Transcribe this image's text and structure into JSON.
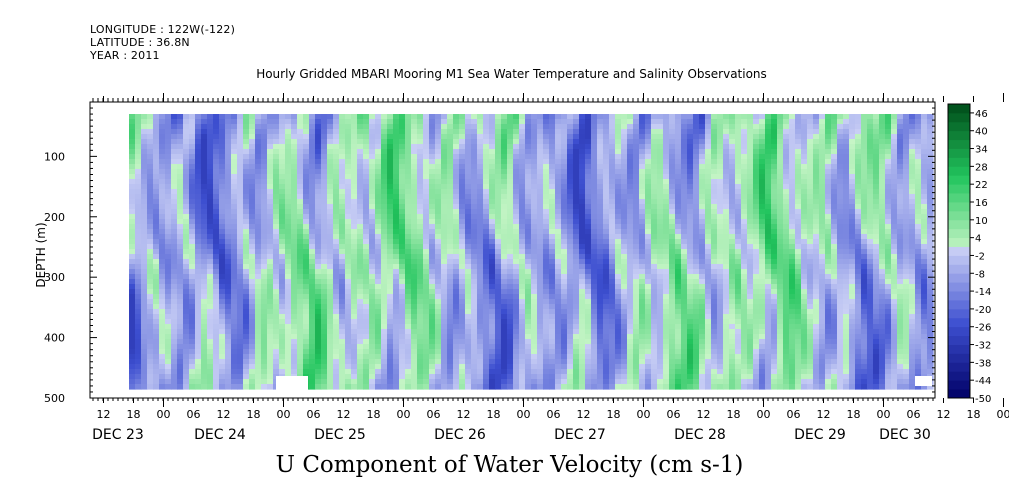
{
  "header": {
    "longitude": "LONGITUDE : 122W(-122)",
    "latitude": "LATITUDE : 36.8N",
    "year": "YEAR : 2011",
    "title": "Hourly Gridded MBARI Mooring M1 Sea Water Temperature and Salinity Observations"
  },
  "chart_data": {
    "type": "heatmap",
    "title": "Hourly Gridded MBARI Mooring M1 Sea Water Temperature and Salinity Observations",
    "xlabel": "U Component of Water Velocity (cm s-1)",
    "ylabel": "DEPTH (m)",
    "y_ticks": [
      100,
      200,
      300,
      400,
      500
    ],
    "ylim": [
      500,
      10
    ],
    "y_inverted": true,
    "x_hour_ticks": [
      "12",
      "18",
      "00",
      "06",
      "12",
      "18",
      "00",
      "06",
      "12",
      "18",
      "00",
      "06",
      "12",
      "18",
      "00",
      "06",
      "12",
      "18",
      "00",
      "06",
      "12",
      "18",
      "00",
      "06",
      "12",
      "18",
      "00",
      "06",
      "12",
      "18",
      "00",
      "06"
    ],
    "x_day_labels": [
      "DEC 23",
      "DEC 24",
      "DEC 25",
      "DEC 26",
      "DEC 27",
      "DEC 28",
      "DEC 29",
      "DEC 30"
    ],
    "colorbar_levels": [
      "46",
      "40",
      "34",
      "28",
      "22",
      "16",
      "10",
      "4",
      "-2",
      "-8",
      "-14",
      "-20",
      "-26",
      "-32",
      "-38",
      "-44",
      "-50"
    ],
    "colorbar_range": [
      -50,
      49
    ],
    "colorbar_step": 3,
    "colors": {
      "negative_strong": "#000066",
      "negative_mid": "#3d4fd0",
      "negative_weak": "#c9cff5",
      "positive_weak": "#c6f5c6",
      "positive_mid": "#22c55e",
      "positive_strong": "#004d1a"
    }
  }
}
